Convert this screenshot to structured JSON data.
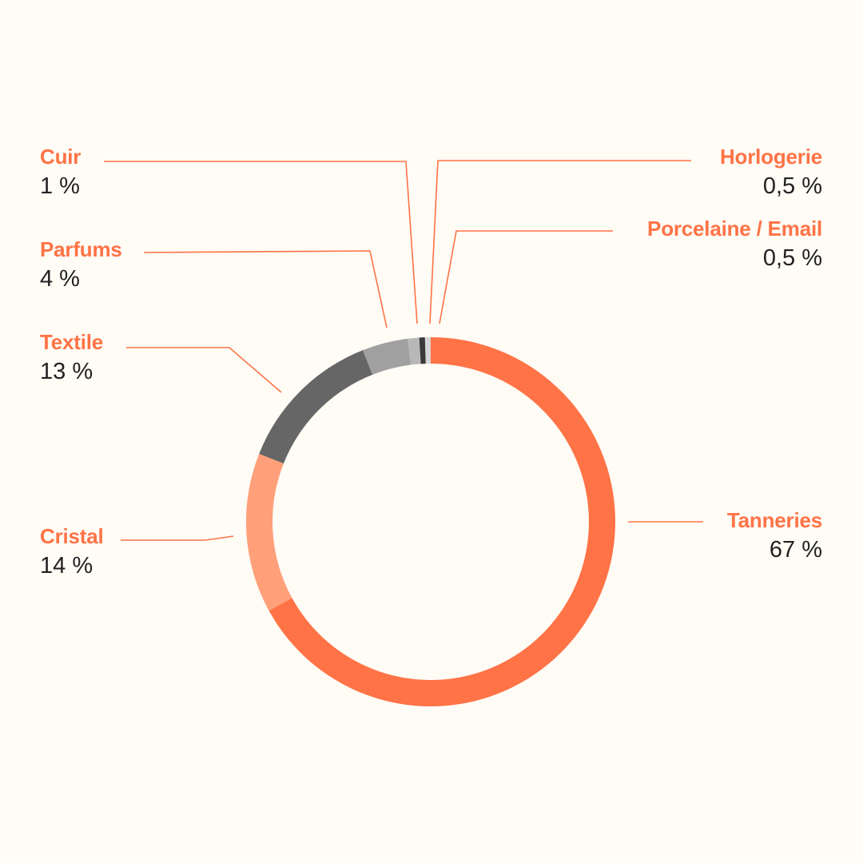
{
  "colors": {
    "background": "#fffbf5",
    "accent": "#ff7346",
    "text": "#222222"
  },
  "chart_data": {
    "type": "pie",
    "variant": "donut",
    "title": "",
    "legend": "none",
    "slices": [
      {
        "key": "tanneries",
        "label": "Tanneries",
        "value": 67,
        "display": "67 %",
        "color": "#ff7346"
      },
      {
        "key": "cristal",
        "label": "Cristal",
        "value": 14,
        "display": "14 %",
        "color": "#ffa07a"
      },
      {
        "key": "textile",
        "label": "Textile",
        "value": 13,
        "display": "13 %",
        "color": "#666666"
      },
      {
        "key": "parfums",
        "label": "Parfums",
        "value": 4,
        "display": "4 %",
        "color": "#a0a0a0"
      },
      {
        "key": "cuir",
        "label": "Cuir",
        "value": 1,
        "display": "1 %",
        "color": "#b8b8b8"
      },
      {
        "key": "horlogerie",
        "label": "Horlogerie",
        "value": 0.5,
        "display": "0,5 %",
        "color": "#3a3a3a"
      },
      {
        "key": "porcelaine",
        "label": "Porcelaine / Email",
        "value": 0.5,
        "display": "0,5 %",
        "color": "#d6d6d6"
      }
    ]
  }
}
